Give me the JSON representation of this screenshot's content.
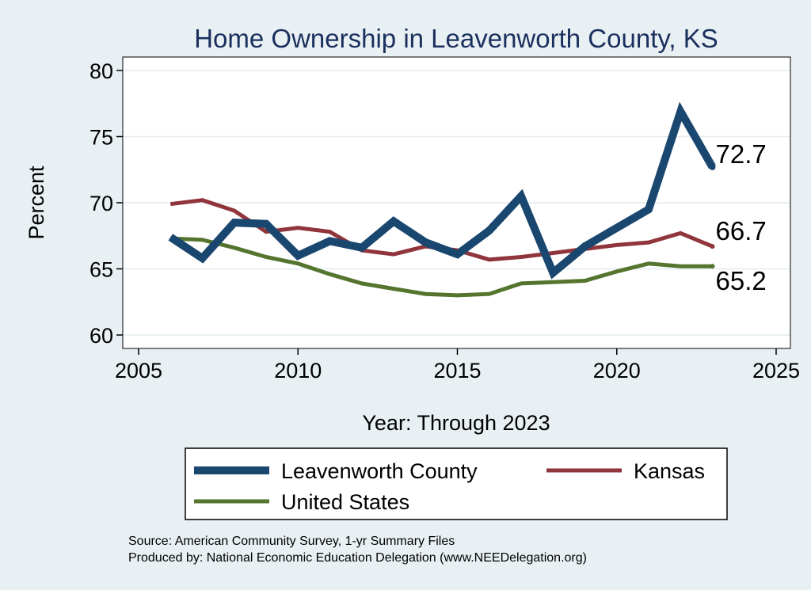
{
  "chart_data": {
    "type": "line",
    "title": "Home Ownership in Leavenworth County, KS",
    "xlabel": "Year: Through 2023",
    "ylabel": "Percent",
    "xlim": [
      2005,
      2025
    ],
    "ylim": [
      60,
      80
    ],
    "x_ticks": [
      2005,
      2010,
      2015,
      2020,
      2025
    ],
    "y_ticks": [
      60,
      65,
      70,
      75,
      80
    ],
    "grid": true,
    "x": [
      2006,
      2007,
      2008,
      2009,
      2010,
      2011,
      2012,
      2013,
      2014,
      2015,
      2016,
      2017,
      2018,
      2019,
      2020,
      2021,
      2022,
      2023
    ],
    "series": [
      {
        "name": "Leavenworth County",
        "color": "#1a476f",
        "values": [
          67.4,
          65.8,
          68.5,
          68.4,
          66.0,
          67.1,
          66.6,
          68.6,
          67.0,
          66.1,
          67.9,
          70.5,
          64.7,
          66.7,
          68.1,
          69.5,
          76.9,
          72.7
        ],
        "end_label": "72.7"
      },
      {
        "name": "Kansas",
        "color": "#90353b",
        "values": [
          69.9,
          70.2,
          69.4,
          67.8,
          68.1,
          67.8,
          66.4,
          66.1,
          66.7,
          66.4,
          65.7,
          65.9,
          66.2,
          66.5,
          66.8,
          67.0,
          67.7,
          66.7
        ],
        "end_label": "66.7"
      },
      {
        "name": "United States",
        "color": "#55752f",
        "values": [
          67.3,
          67.2,
          66.6,
          65.9,
          65.4,
          64.6,
          63.9,
          63.5,
          63.1,
          63.0,
          63.1,
          63.9,
          64.0,
          64.1,
          64.8,
          65.4,
          65.2,
          65.2
        ],
        "end_label": "65.2"
      }
    ],
    "legend_position": "bottom"
  },
  "footer": {
    "source": "Source: American Community Survey, 1-yr Summary Files",
    "produced_by": "Produced by: National Economic Education Delegation (www.NEEDelegation.org)"
  }
}
